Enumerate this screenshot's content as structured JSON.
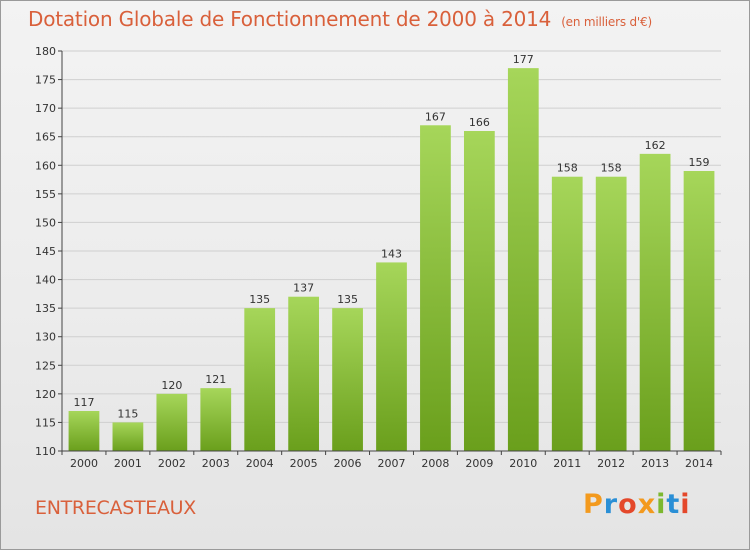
{
  "page": {
    "title": "Dotation Globale de Fonctionnement de 2000 à 2014",
    "unit": "(en milliers d'€)",
    "commune": "ENTRECASTEAUX",
    "logo_text": "Proxiti"
  },
  "colors": {
    "title": "#d9603b",
    "bar_top": "#a6d65a",
    "bar_bottom": "#6a9f1c",
    "grid": "#cfcfcf",
    "axis": "#444444",
    "logo": [
      "#f39a1e",
      "#2a8fd6",
      "#e4482b",
      "#f39a1e",
      "#7cb82f",
      "#2a8fd6",
      "#e4482b"
    ]
  },
  "chart_data": {
    "type": "bar",
    "title": "Dotation Globale de Fonctionnement de 2000 à 2014",
    "subtitle": "(en milliers d'€)",
    "xlabel": "",
    "ylabel": "",
    "categories": [
      "2000",
      "2001",
      "2002",
      "2003",
      "2004",
      "2005",
      "2006",
      "2007",
      "2008",
      "2009",
      "2010",
      "2011",
      "2012",
      "2013",
      "2014"
    ],
    "values": [
      117,
      115,
      120,
      121,
      135,
      137,
      135,
      143,
      167,
      166,
      177,
      158,
      158,
      162,
      159
    ],
    "ylim": [
      110,
      180
    ],
    "yticks": [
      110,
      115,
      120,
      125,
      130,
      135,
      140,
      145,
      150,
      155,
      160,
      165,
      170,
      175,
      180
    ],
    "grid": true,
    "legend": "none"
  }
}
